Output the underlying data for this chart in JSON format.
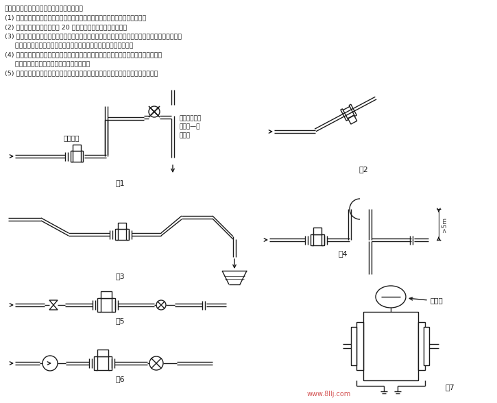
{
  "bg_color": "#ffffff",
  "line_color": "#1a1a1a",
  "text_color": "#1a1a1a",
  "watermark": "www.8llj.com",
  "header_lines": [
    "流量计安装后，一般经以下步骤可正式使用。",
    "(1) 安装检查：检查管线安装是否正确，各连线是否正确可靠，特别是接地线。",
    "(2) 通电预热：通电后，预热 20 分钟，仪表一般就能正常测量。",
    "(3) 零点跟踪：为保证精度，需要进行零点跟踪。电磁流量计的测量管充满液体并确定液体静止后，",
    "     就可以进行零点校准，然后保存（确认）。根据现场具体情况来定。",
    "(4) 参数设定：用户根据使用需要，可做必要的参数设定。但随意改动各种出厂设定值，",
    "     有可能造成仪表测量误差或不能正常工作。",
    "(5) 根据介质粘附程度，应定期清理流量计内壁和电极，并注意勿使衬里与电极受损。"
  ],
  "label_correct": "正确安装",
  "label_wrong": "容易产生介质\n非满管—错\n误安装",
  "fig_labels": [
    "图1",
    "图2",
    "图3",
    "图4",
    "图5",
    "图6",
    "图7"
  ],
  "dim_label": ">5m",
  "transmitter_label": "变送器"
}
